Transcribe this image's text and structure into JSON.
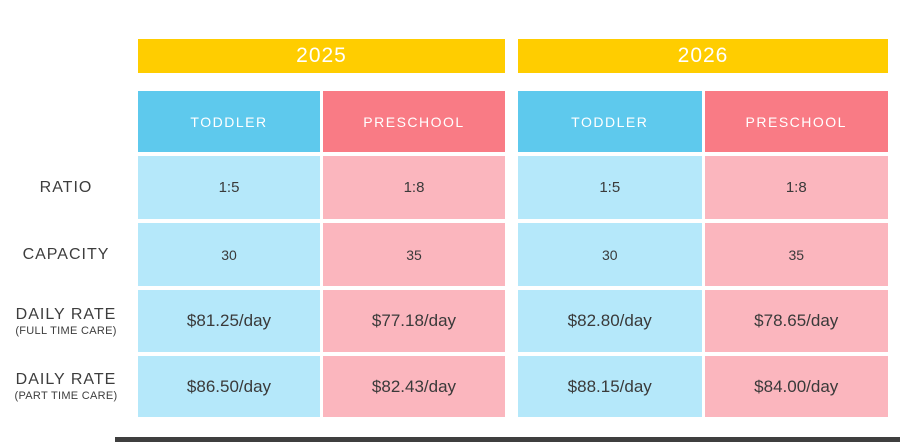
{
  "colors": {
    "background": "#FFFFFF",
    "year_band_yellow": "#FFCD00",
    "toddler_header_blue": "#5EC9ED",
    "preschool_header_coral": "#F97B85",
    "toddler_cell_light_blue": "#B5E8FA",
    "preschool_cell_light_pink": "#FBB6BE",
    "header_text": "#FFFFFF",
    "cell_text": "#3A3A3A",
    "label_text": "#3D3D3D",
    "scrollbar_dark": "#3F3F3F"
  },
  "row_labels": [
    {
      "title": "RATIO",
      "subtitle": ""
    },
    {
      "title": "CAPACITY",
      "subtitle": ""
    },
    {
      "title": "DAILY RATE",
      "subtitle": "(FULL TIME CARE)"
    },
    {
      "title": "DAILY RATE",
      "subtitle": "(PART TIME CARE)"
    }
  ],
  "chart_data": [
    {
      "type": "table",
      "title": "2025",
      "columns": [
        "TODDLER",
        "PRESCHOOL"
      ],
      "row_headers": [
        "RATIO",
        "CAPACITY",
        "DAILY RATE (FULL TIME CARE)",
        "DAILY RATE (PART TIME CARE)"
      ],
      "rows": [
        [
          "1:5",
          "1:8"
        ],
        [
          "30",
          "35"
        ],
        [
          "$81.25/day",
          "$77.18/day"
        ],
        [
          "$86.50/day",
          "$82.43/day"
        ]
      ]
    },
    {
      "type": "table",
      "title": "2026",
      "columns": [
        "TODDLER",
        "PRESCHOOL"
      ],
      "row_headers": [
        "RATIO",
        "CAPACITY",
        "DAILY RATE (FULL TIME CARE)",
        "DAILY RATE (PART TIME CARE)"
      ],
      "rows": [
        [
          "1:5",
          "1:8"
        ],
        [
          "30",
          "35"
        ],
        [
          "$82.80/day",
          "$78.65/day"
        ],
        [
          "$88.15/day",
          "$84.00/day"
        ]
      ]
    }
  ]
}
